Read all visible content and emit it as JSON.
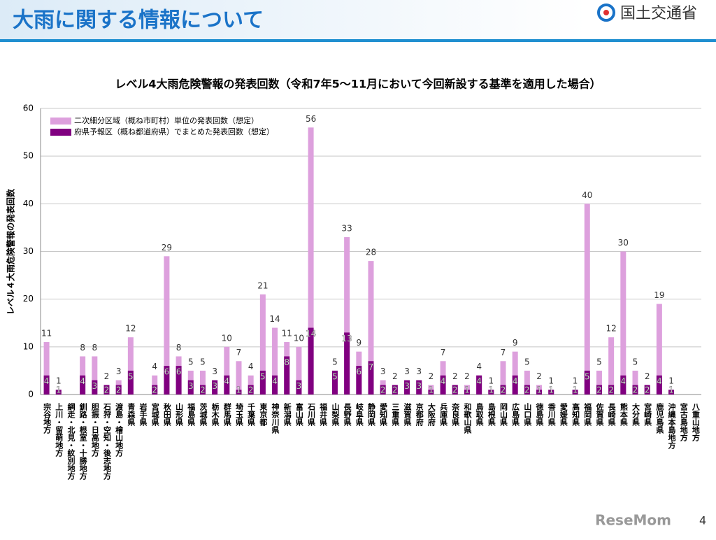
{
  "header": {
    "title": "大雨に関する情報について",
    "logo": "国土交通省"
  },
  "page_number": "4",
  "watermark": "ReseMom",
  "chart_data": {
    "type": "bar",
    "title": "レベル4大雨危険警報の発表回数（令和7年5～11月において今回新設する基準を適用した場合）",
    "y_label": "レベル４大雨危険警報の発表回数",
    "categories": [
      "宗谷地方",
      "上川・留萌地方",
      "網走・北見・紋別地方",
      "釧路・根室・十勝地方",
      "胆振・日高地方",
      "石狩・空知・後志地方",
      "渡島・檜山地方",
      "青森県",
      "岩手県",
      "宮城県",
      "秋田県",
      "山形県",
      "福島県",
      "茨城県",
      "栃木県",
      "群馬県",
      "埼玉県",
      "千葉県",
      "東京都",
      "神奈川県",
      "新潟県",
      "富山県",
      "石川県",
      "福井県",
      "山梨県",
      "長野県",
      "岐阜県",
      "静岡県",
      "愛知県",
      "三重県",
      "滋賀県",
      "京都府",
      "大阪府",
      "兵庫県",
      "奈良県",
      "和歌山県",
      "鳥取県",
      "島根県",
      "岡山県",
      "広島県",
      "山口県",
      "徳島県",
      "香川県",
      "愛媛県",
      "高知県",
      "福岡県",
      "佐賀県",
      "長崎県",
      "熊本県",
      "大分県",
      "宮崎県",
      "鹿児島県",
      "沖縄本島地方",
      "宮古島地方",
      "八重山地方"
    ],
    "series": [
      {
        "name": "二次細分区域（概ね市町村）単位の発表回数（想定）",
        "color": "#dda0dd",
        "values": [
          11,
          1,
          null,
          8,
          8,
          2,
          3,
          12,
          null,
          4,
          29,
          8,
          5,
          5,
          3,
          10,
          7,
          4,
          21,
          14,
          11,
          10,
          56,
          null,
          5,
          33,
          9,
          28,
          3,
          2,
          3,
          3,
          2,
          7,
          2,
          2,
          4,
          1,
          7,
          9,
          5,
          2,
          1,
          null,
          1,
          40,
          5,
          12,
          30,
          5,
          2,
          19,
          1,
          null,
          null
        ]
      },
      {
        "name": "府県予報区（概ね都道府県）でまとめた発表回数（想定）",
        "color": "#800080",
        "values": [
          4,
          1,
          null,
          4,
          3,
          2,
          2,
          5,
          null,
          2,
          6,
          6,
          3,
          2,
          3,
          4,
          1,
          2,
          5,
          4,
          8,
          3,
          14,
          null,
          5,
          13,
          6,
          7,
          2,
          2,
          3,
          3,
          1,
          4,
          2,
          1,
          4,
          1,
          2,
          4,
          2,
          1,
          1,
          null,
          1,
          5,
          2,
          2,
          4,
          2,
          2,
          4,
          1,
          null,
          null
        ]
      }
    ],
    "ylim": [
      0,
      60
    ],
    "yticks": [
      0,
      10,
      20,
      30,
      40,
      50,
      60
    ],
    "grid": true,
    "legend": "upper left"
  }
}
